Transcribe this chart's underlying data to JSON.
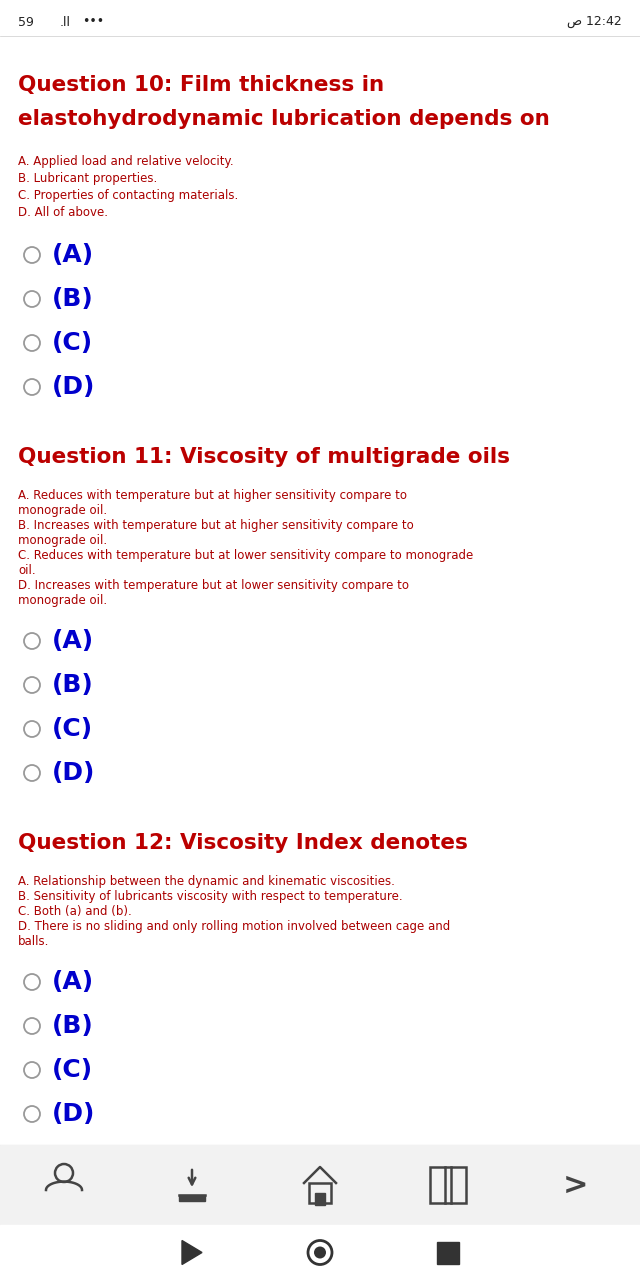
{
  "bg_color": "#ffffff",
  "status_color": "#222222",
  "title_color": "#bb0000",
  "option_text_color": "#aa0000",
  "choice_color": "#0000cc",
  "circle_color": "#999999",
  "q10_title_line1": "Question 10: Film thickness in",
  "q10_title_line2": "elastohydrodynamic lubrication depends on",
  "q10_options": [
    "A. Applied load and relative velocity.",
    "B. Lubricant properties.",
    "C. Properties of contacting materials.",
    "D. All of above."
  ],
  "q11_title_line1": "Question 11: Viscosity of multigrade oils",
  "q11_options": [
    "A. Reduces with temperature but at higher sensitivity compare to\nmonograde oil.",
    "B. Increases with temperature but at higher sensitivity compare to\nmonograde oil.",
    "C. Reduces with temperature but at lower sensitivity compare to monograde\noil.",
    "D. Increases with temperature but at lower sensitivity compare to\nmonograde oil."
  ],
  "q12_title_line1": "Question 12: Viscosity Index denotes",
  "q12_options": [
    "A. Relationship between the dynamic and kinematic viscosities.",
    "B. Sensitivity of lubricants viscosity with respect to temperature.",
    "C. Both (a) and (b).",
    "D. There is no sliding and only rolling motion involved between cage and\nballs."
  ],
  "choices": [
    "(A)",
    "(B)",
    "(C)",
    "(D)"
  ],
  "bottom_bar_color": "#f2f2f2",
  "separator_color": "#cccccc"
}
